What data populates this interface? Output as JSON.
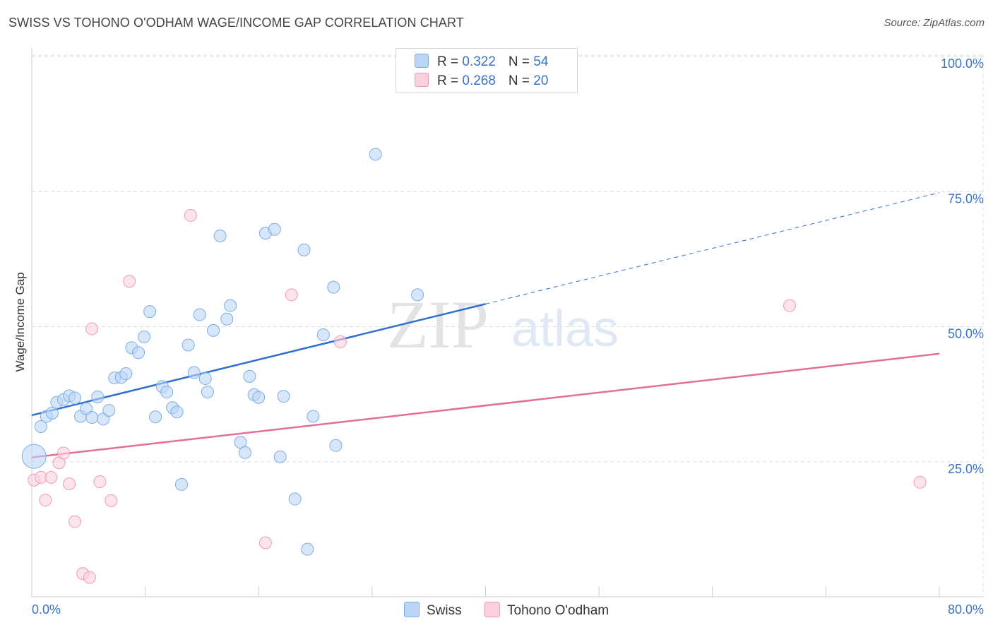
{
  "title": "SWISS VS TOHONO O'ODHAM WAGE/INCOME GAP CORRELATION CHART",
  "source": "Source: ZipAtlas.com",
  "watermark": {
    "zip": "ZIP",
    "atlas": "atlas"
  },
  "legend": {
    "rows": [
      {
        "r_label": "R = ",
        "r_value": "0.322",
        "n_label": "N = ",
        "n_value": "54"
      },
      {
        "r_label": "R = ",
        "r_value": "0.268",
        "n_label": "N = ",
        "n_value": "20"
      }
    ]
  },
  "chart_data": {
    "type": "scatter",
    "title": "SWISS VS TOHONO O'ODHAM WAGE/INCOME GAP CORRELATION CHART",
    "xlabel": "",
    "ylabel": "Wage/Income Gap",
    "xlim": [
      0,
      80
    ],
    "ylim": [
      0,
      100
    ],
    "x_tick_labels": [
      "0.0%",
      "80.0%"
    ],
    "y_ticks": [
      25,
      50,
      75,
      100
    ],
    "y_tick_labels": [
      "25.0%",
      "50.0%",
      "75.0%",
      "100.0%"
    ],
    "grid": true,
    "legend_position": "top-center",
    "series": [
      {
        "name": "Swiss",
        "color": "#7aaee8",
        "fill": "#bcd5f5",
        "line_color": "#2f6fd0",
        "r": 0.322,
        "n": 54,
        "trend": {
          "x0": 0,
          "y0": 33.6,
          "x1": 40,
          "y1": 54.2,
          "dash_to_x": 80,
          "dash_to_y": 74.8
        },
        "points": [
          [
            0.8,
            31.5
          ],
          [
            1.3,
            33.4
          ],
          [
            1.8,
            34.0
          ],
          [
            2.2,
            36.0
          ],
          [
            2.8,
            36.5
          ],
          [
            3.3,
            37.2
          ],
          [
            3.8,
            36.8
          ],
          [
            4.3,
            33.4
          ],
          [
            4.8,
            34.8
          ],
          [
            5.3,
            33.2
          ],
          [
            5.8,
            37.0
          ],
          [
            6.3,
            32.9
          ],
          [
            6.8,
            34.5
          ],
          [
            7.3,
            40.5
          ],
          [
            7.9,
            40.6
          ],
          [
            8.3,
            41.3
          ],
          [
            8.8,
            46.1
          ],
          [
            9.4,
            45.2
          ],
          [
            9.9,
            48.1
          ],
          [
            10.4,
            52.8
          ],
          [
            10.9,
            33.3
          ],
          [
            11.5,
            38.9
          ],
          [
            11.9,
            37.9
          ],
          [
            12.4,
            35.0
          ],
          [
            12.8,
            34.2
          ],
          [
            13.2,
            20.8
          ],
          [
            13.8,
            46.6
          ],
          [
            14.3,
            41.5
          ],
          [
            14.8,
            52.2
          ],
          [
            15.3,
            40.4
          ],
          [
            15.5,
            37.9
          ],
          [
            16.0,
            49.3
          ],
          [
            16.6,
            66.8
          ],
          [
            17.2,
            51.4
          ],
          [
            17.5,
            53.9
          ],
          [
            18.4,
            28.6
          ],
          [
            18.8,
            26.7
          ],
          [
            19.2,
            40.8
          ],
          [
            19.6,
            37.4
          ],
          [
            20.0,
            36.9
          ],
          [
            20.6,
            67.3
          ],
          [
            21.4,
            68.0
          ],
          [
            21.9,
            25.9
          ],
          [
            22.2,
            37.1
          ],
          [
            23.2,
            18.1
          ],
          [
            24.0,
            64.2
          ],
          [
            24.3,
            8.8
          ],
          [
            24.8,
            33.4
          ],
          [
            25.7,
            48.5
          ],
          [
            26.6,
            57.3
          ],
          [
            26.8,
            28.0
          ],
          [
            30.3,
            81.9
          ],
          [
            34.0,
            55.9
          ],
          [
            0.2,
            26.0
          ]
        ]
      },
      {
        "name": "Tohono O'odham",
        "color": "#f09ab5",
        "fill": "#fbd0de",
        "line_color": "#e26f98",
        "r": 0.268,
        "n": 20,
        "trend": {
          "x0": 0,
          "y0": 25.8,
          "x1": 80,
          "y1": 45.0
        },
        "points": [
          [
            0.2,
            21.6
          ],
          [
            0.8,
            22.1
          ],
          [
            1.2,
            17.9
          ],
          [
            1.7,
            22.1
          ],
          [
            2.4,
            24.8
          ],
          [
            2.8,
            26.6
          ],
          [
            3.3,
            20.9
          ],
          [
            3.8,
            13.9
          ],
          [
            4.5,
            4.3
          ],
          [
            5.1,
            3.6
          ],
          [
            5.3,
            49.6
          ],
          [
            6.0,
            21.3
          ],
          [
            7.0,
            17.8
          ],
          [
            8.6,
            58.4
          ],
          [
            14.0,
            70.6
          ],
          [
            20.6,
            10.0
          ],
          [
            22.9,
            55.9
          ],
          [
            27.2,
            47.2
          ],
          [
            66.8,
            53.9
          ],
          [
            78.3,
            21.2
          ]
        ]
      }
    ]
  }
}
